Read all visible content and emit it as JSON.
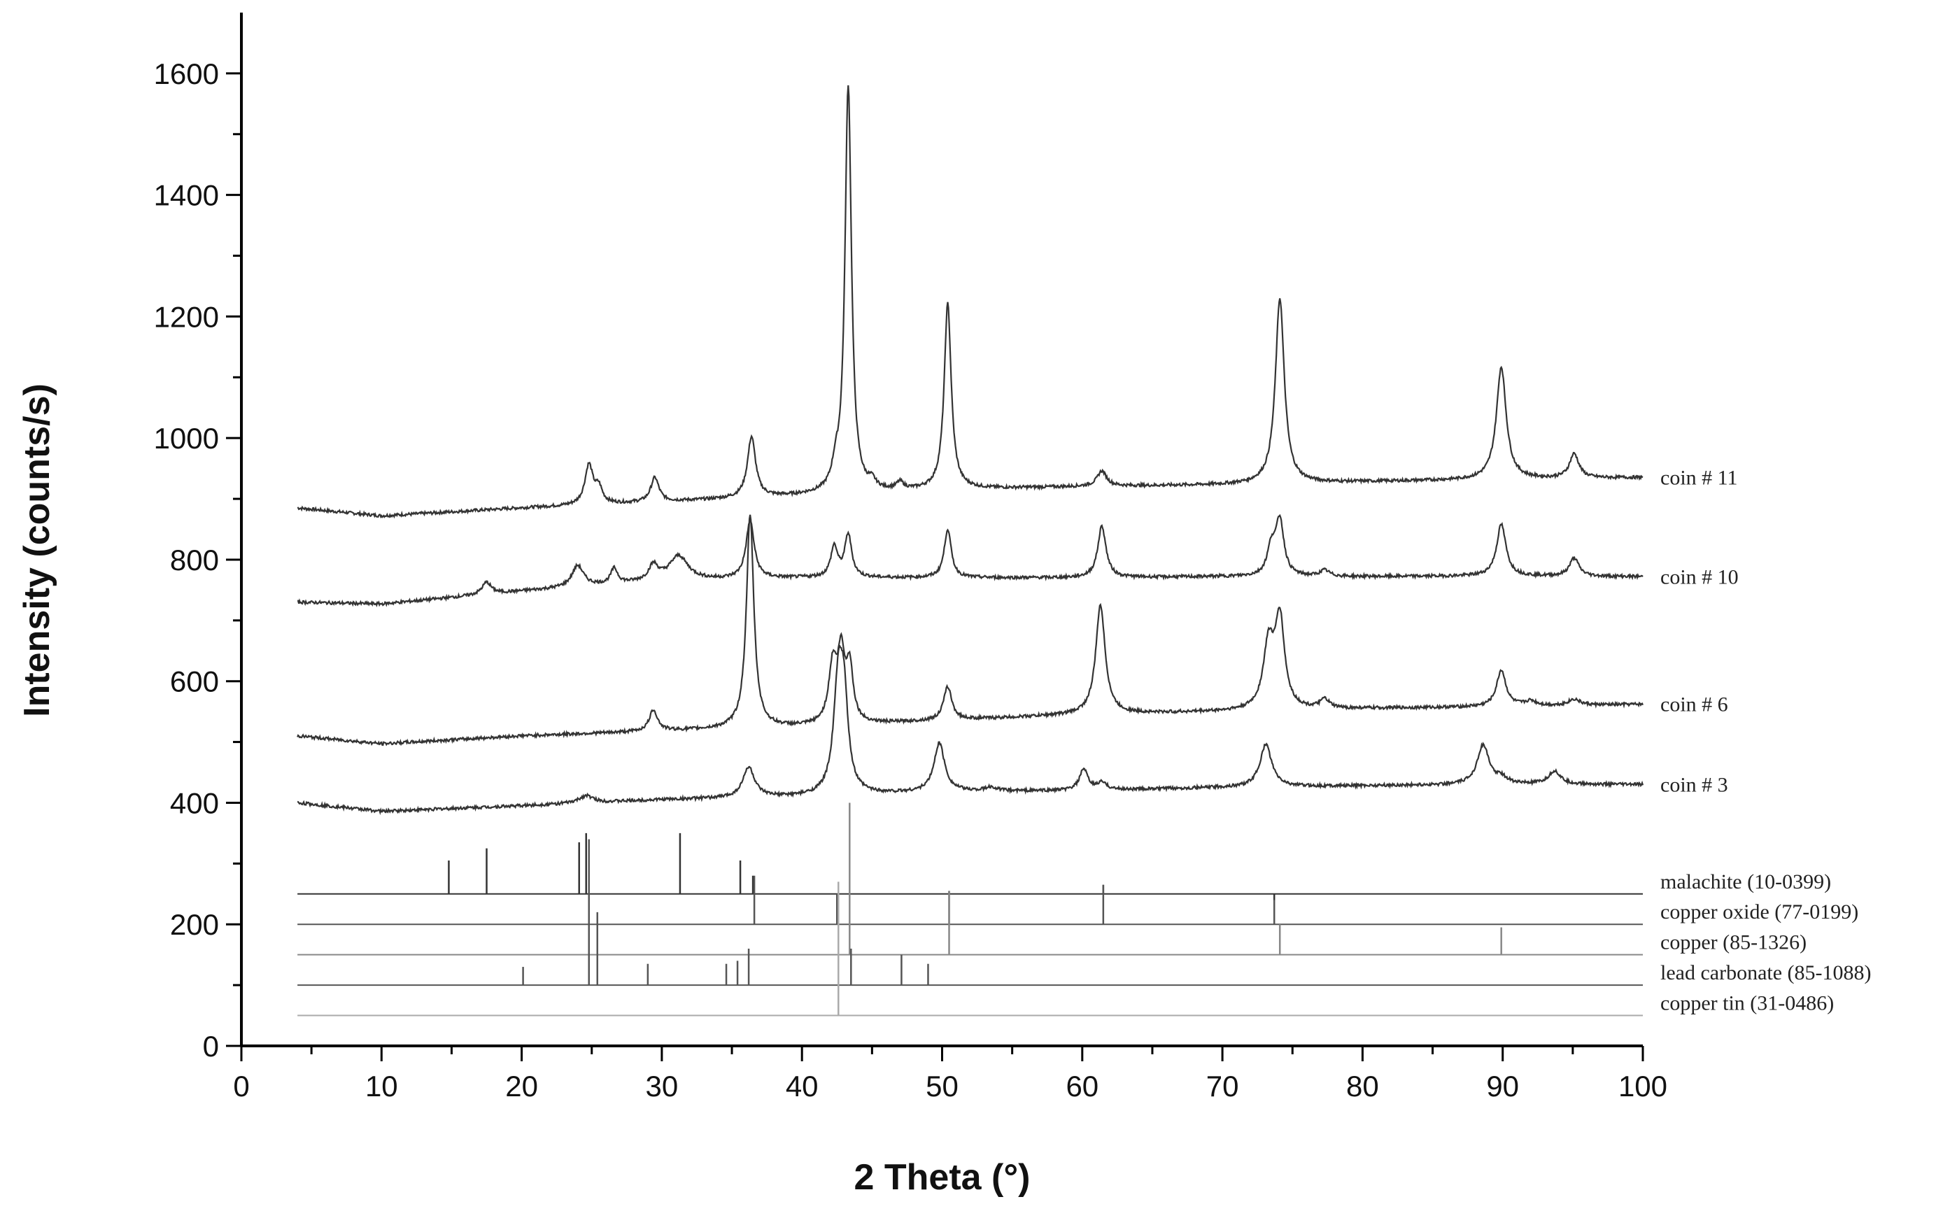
{
  "chart_data": {
    "type": "line",
    "title": "",
    "xlabel": "2 Theta (°)",
    "ylabel": "Intensity (counts/s)",
    "xlim": [
      0,
      100
    ],
    "ylim": [
      0,
      1700
    ],
    "x_ticks": [
      0,
      10,
      20,
      30,
      40,
      50,
      60,
      70,
      80,
      90,
      100
    ],
    "y_ticks": [
      0,
      200,
      400,
      600,
      800,
      1000,
      1200,
      1400,
      1600
    ],
    "grid": false,
    "legend": "labels-at-right-end",
    "series": [
      {
        "name": "coin # 11",
        "color": "#333333",
        "baseline": [
          [
            4,
            885
          ],
          [
            10,
            872
          ],
          [
            20,
            885
          ],
          [
            30,
            895
          ],
          [
            40,
            905
          ],
          [
            50,
            915
          ],
          [
            60,
            920
          ],
          [
            70,
            923
          ],
          [
            80,
            928
          ],
          [
            90,
            932
          ],
          [
            100,
            935
          ]
        ],
        "peaks": [
          [
            24.8,
            65,
            0.35
          ],
          [
            25.5,
            25,
            0.3
          ],
          [
            29.5,
            40,
            0.35
          ],
          [
            36.4,
            100,
            0.35
          ],
          [
            42.4,
            30,
            0.3
          ],
          [
            43.3,
            670,
            0.28
          ],
          [
            45,
            12,
            0.3
          ],
          [
            47,
            12,
            0.3
          ],
          [
            50.4,
            305,
            0.3
          ],
          [
            61.4,
            25,
            0.4
          ],
          [
            74.1,
            305,
            0.38
          ],
          [
            89.9,
            185,
            0.42
          ],
          [
            95.1,
            40,
            0.4
          ]
        ]
      },
      {
        "name": "coin # 10",
        "color": "#333333",
        "baseline": [
          [
            4,
            730
          ],
          [
            10,
            727
          ],
          [
            20,
            748
          ],
          [
            30,
            765
          ],
          [
            40,
            770
          ],
          [
            50,
            770
          ],
          [
            60,
            770
          ],
          [
            70,
            772
          ],
          [
            80,
            772
          ],
          [
            90,
            773
          ],
          [
            100,
            772
          ]
        ],
        "peaks": [
          [
            17.5,
            20,
            0.4
          ],
          [
            24,
            35,
            0.5
          ],
          [
            26.6,
            25,
            0.3
          ],
          [
            29.4,
            25,
            0.4
          ],
          [
            31.2,
            40,
            0.8
          ],
          [
            36.3,
            95,
            0.35
          ],
          [
            42.3,
            50,
            0.3
          ],
          [
            43.3,
            70,
            0.3
          ],
          [
            50.4,
            80,
            0.3
          ],
          [
            61.4,
            85,
            0.35
          ],
          [
            73.5,
            45,
            0.35
          ],
          [
            74.1,
            90,
            0.35
          ],
          [
            77.3,
            10,
            0.4
          ],
          [
            89.9,
            85,
            0.4
          ],
          [
            95.1,
            30,
            0.4
          ]
        ]
      },
      {
        "name": "coin # 6",
        "color": "#333333",
        "baseline": [
          [
            4,
            510
          ],
          [
            10,
            497
          ],
          [
            20,
            510
          ],
          [
            30,
            518
          ],
          [
            40,
            525
          ],
          [
            50,
            535
          ],
          [
            60,
            545
          ],
          [
            70,
            550
          ],
          [
            80,
            555
          ],
          [
            90,
            558
          ],
          [
            100,
            562
          ]
        ],
        "peaks": [
          [
            29.4,
            35,
            0.35
          ],
          [
            36.3,
            350,
            0.32
          ],
          [
            42.2,
            95,
            0.35
          ],
          [
            42.8,
            105,
            0.3
          ],
          [
            43.4,
            90,
            0.3
          ],
          [
            50.4,
            55,
            0.35
          ],
          [
            61.3,
            180,
            0.4
          ],
          [
            73.3,
            105,
            0.45
          ],
          [
            74.1,
            145,
            0.4
          ],
          [
            77.3,
            15,
            0.4
          ],
          [
            89.9,
            60,
            0.4
          ],
          [
            92,
            8,
            0.5
          ],
          [
            95.1,
            10,
            0.5
          ]
        ]
      },
      {
        "name": "coin # 3",
        "color": "#333333",
        "baseline": [
          [
            4,
            400
          ],
          [
            10,
            386
          ],
          [
            20,
            395
          ],
          [
            30,
            405
          ],
          [
            40,
            410
          ],
          [
            50,
            418
          ],
          [
            60,
            420
          ],
          [
            70,
            425
          ],
          [
            80,
            428
          ],
          [
            90,
            430
          ],
          [
            100,
            430
          ]
        ],
        "peaks": [
          [
            24.6,
            12,
            0.6
          ],
          [
            36.2,
            50,
            0.5
          ],
          [
            42.6,
            180,
            0.4
          ],
          [
            43,
            130,
            0.35
          ],
          [
            49.8,
            80,
            0.45
          ],
          [
            53.5,
            6,
            0.5
          ],
          [
            60.1,
            35,
            0.35
          ],
          [
            61.4,
            12,
            0.4
          ],
          [
            73.1,
            70,
            0.5
          ],
          [
            88.6,
            65,
            0.5
          ],
          [
            89.9,
            10,
            0.5
          ],
          [
            93.7,
            22,
            0.5
          ]
        ]
      }
    ],
    "reference_patterns": [
      {
        "name": "malachite (10-0399)",
        "baseline_y": 250,
        "color": "#333333",
        "sticks": [
          [
            14.8,
            305
          ],
          [
            17.5,
            325
          ],
          [
            24.1,
            335
          ],
          [
            24.6,
            350
          ],
          [
            31.3,
            350
          ],
          [
            35.6,
            305
          ],
          [
            36.5,
            280
          ],
          [
            42.5,
            200
          ],
          [
            50.5,
            255
          ],
          [
            61.5,
            265
          ],
          [
            73.7,
            240
          ]
        ]
      },
      {
        "name": "copper oxide (77-0199)",
        "baseline_y": 200,
        "color": "#555555",
        "sticks": [
          [
            36.6,
            280
          ],
          [
            42.5,
            250
          ],
          [
            50.5,
            255
          ],
          [
            61.5,
            265
          ],
          [
            73.7,
            240
          ]
        ]
      },
      {
        "name": "copper (85-1326)",
        "baseline_y": 150,
        "color": "#888888",
        "sticks": [
          [
            43.4,
            400
          ],
          [
            50.5,
            255
          ],
          [
            74.1,
            200
          ],
          [
            89.9,
            195
          ]
        ]
      },
      {
        "name": "lead carbonate (85-1088)",
        "baseline_y": 100,
        "color": "#555555",
        "sticks": [
          [
            20.1,
            130
          ],
          [
            24.8,
            340
          ],
          [
            25.4,
            220
          ],
          [
            29.0,
            135
          ],
          [
            34.6,
            135
          ],
          [
            35.4,
            140
          ],
          [
            36.2,
            160
          ],
          [
            43.5,
            160
          ],
          [
            47.1,
            150
          ],
          [
            49.0,
            135
          ]
        ]
      },
      {
        "name": "copper tin (31-0486)",
        "baseline_y": 50,
        "color": "#aaaaaa",
        "sticks": [
          [
            42.6,
            270
          ]
        ]
      }
    ]
  }
}
